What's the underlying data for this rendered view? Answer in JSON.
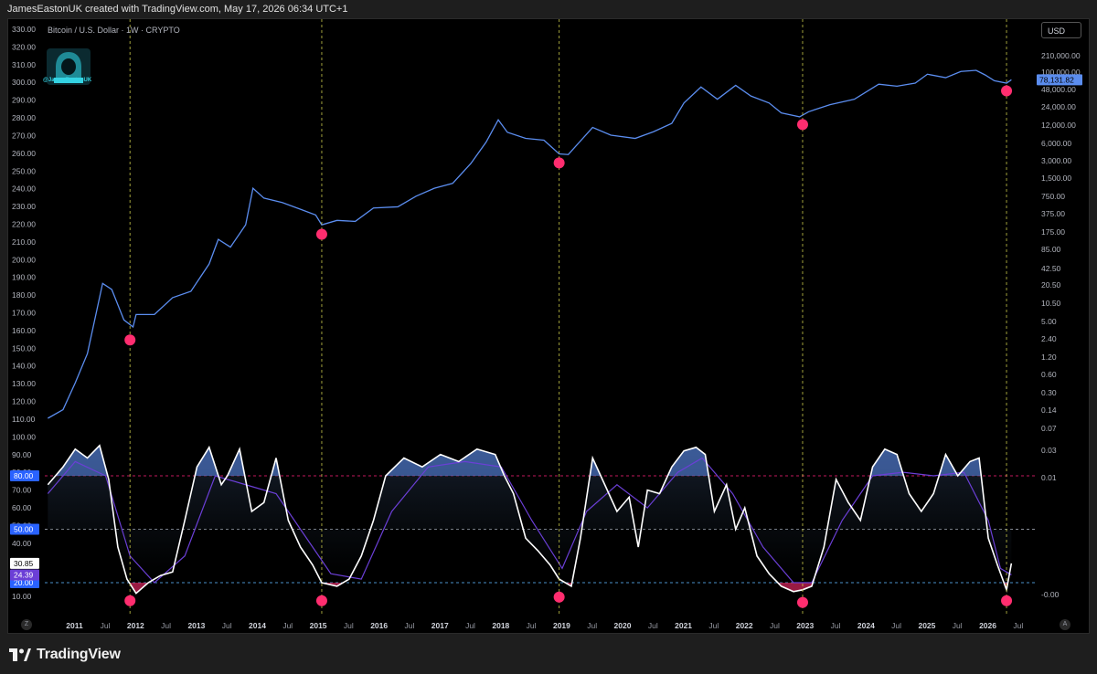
{
  "header": {
    "attribution": "JamesEastonUK created with TradingView.com, May 17, 2026 06:34 UTC+1"
  },
  "chart_header": {
    "symbol_line": "Bitcoin / U.S. Dollar · 1W · CRYPTO",
    "currency_button": "USD",
    "watermark_handle": "@JamesEastonUK"
  },
  "footer": {
    "brand": "TradingView",
    "z_button": "Z",
    "a_button": "A"
  },
  "colors": {
    "price_line": "#5b8def",
    "oscillator_line": "#ffffff",
    "signal_line": "#6b3fd6",
    "marker": "#ff2d6f",
    "overbought_line": "#c2185b",
    "vertical_guides": "#c8c84a",
    "upper_fill": "#5b8def",
    "lower_fill": "#ff2d6f"
  },
  "chart_data": [
    {
      "type": "line",
      "title": "Bitcoin / U.S. Dollar · 1W · CRYPTO",
      "scale": "log",
      "left_axis_ticks": [
        "330.00",
        "320.00",
        "310.00",
        "300.00",
        "290.00",
        "280.00",
        "270.00",
        "260.00",
        "250.00",
        "240.00",
        "230.00",
        "220.00",
        "210.00",
        "200.00",
        "190.00",
        "180.00",
        "170.00",
        "160.00",
        "150.00",
        "140.00",
        "130.00",
        "120.00",
        "110.00",
        "100.00",
        "90.00",
        "80.00",
        "70.00",
        "60.00",
        "50.00",
        "40.00",
        "30.00",
        "20.00",
        "10.00"
      ],
      "right_axis_ticks": [
        "210,000.00",
        "100,000.00",
        "48,000.00",
        "24,000.00",
        "12,000.00",
        "6,000.00",
        "3,000.00",
        "1,500.00",
        "750.00",
        "375.00",
        "175.00",
        "85.00",
        "42.50",
        "20.50",
        "10.50",
        "5.00",
        "2.40",
        "1.20",
        "0.60",
        "0.30",
        "0.14",
        "0.07",
        "0.03",
        "0.01",
        "-0.00"
      ],
      "x_ticks": [
        "2011",
        "Jul",
        "2012",
        "Jul",
        "2013",
        "Jul",
        "2014",
        "Jul",
        "2015",
        "Jul",
        "2016",
        "Jul",
        "2017",
        "Jul",
        "2018",
        "Jul",
        "2019",
        "Jul",
        "2020",
        "Jul",
        "2021",
        "Jul",
        "2022",
        "Jul",
        "2023",
        "Jul",
        "2024",
        "Jul",
        "2025",
        "Jul",
        "2026",
        "Jul"
      ],
      "last_price_label": "78,131.82",
      "series": [
        {
          "name": "Bitcoin / U.S. Dollar",
          "x": [
            2010.55,
            2010.8,
            2011.0,
            2011.2,
            2011.45,
            2011.6,
            2011.8,
            2011.95,
            2012.0,
            2012.3,
            2012.6,
            2012.9,
            2013.2,
            2013.35,
            2013.55,
            2013.8,
            2013.92,
            2014.1,
            2014.4,
            2014.7,
            2014.95,
            2015.05,
            2015.3,
            2015.6,
            2015.9,
            2016.3,
            2016.6,
            2016.9,
            2017.2,
            2017.5,
            2017.75,
            2017.95,
            2018.1,
            2018.4,
            2018.7,
            2018.95,
            2019.1,
            2019.5,
            2019.8,
            2020.2,
            2020.5,
            2020.8,
            2021.0,
            2021.28,
            2021.55,
            2021.85,
            2022.1,
            2022.4,
            2022.6,
            2022.9,
            2023.05,
            2023.4,
            2023.8,
            2024.2,
            2024.5,
            2024.8,
            2025.0,
            2025.3,
            2025.55,
            2025.8,
            2025.95,
            2026.1,
            2026.3,
            2026.38
          ],
          "values": [
            0.07,
            0.1,
            0.3,
            1.0,
            18,
            14,
            4,
            3,
            5,
            5,
            10,
            13,
            40,
            110,
            80,
            200,
            900,
            600,
            500,
            380,
            300,
            200,
            240,
            230,
            400,
            420,
            650,
            900,
            1100,
            2500,
            6000,
            15000,
            9000,
            7000,
            6500,
            3700,
            3600,
            11000,
            8000,
            7000,
            9200,
            13000,
            30000,
            58000,
            35000,
            62000,
            40000,
            30000,
            20000,
            17000,
            21000,
            28000,
            35000,
            65000,
            60000,
            68000,
            98000,
            85000,
            110000,
            115000,
            95000,
            75000,
            68000,
            78131.82
          ]
        }
      ],
      "lows_marked": [
        "2011 Nov",
        "2015 Jan",
        "2018 Dec",
        "2022 Nov",
        "2026 Apr"
      ]
    },
    {
      "type": "line",
      "scale": "linear",
      "ylim": [
        0,
        100
      ],
      "levels": [
        80,
        50,
        20
      ],
      "level_labels": [
        "80.00",
        "50.00",
        "20.00"
      ],
      "last_value_labels": [
        "30.85",
        "24.39"
      ],
      "series": [
        {
          "name": "oscillator",
          "x": [
            2010.55,
            2010.8,
            2011.0,
            2011.2,
            2011.4,
            2011.55,
            2011.7,
            2011.85,
            2012.0,
            2012.2,
            2012.4,
            2012.6,
            2012.8,
            2013.0,
            2013.2,
            2013.4,
            2013.5,
            2013.7,
            2013.9,
            2014.1,
            2014.3,
            2014.5,
            2014.7,
            2014.9,
            2015.05,
            2015.3,
            2015.5,
            2015.7,
            2015.9,
            2016.1,
            2016.4,
            2016.7,
            2017.0,
            2017.3,
            2017.6,
            2017.9,
            2018.05,
            2018.2,
            2018.4,
            2018.6,
            2018.8,
            2018.95,
            2019.15,
            2019.3,
            2019.5,
            2019.7,
            2019.9,
            2020.1,
            2020.25,
            2020.4,
            2020.6,
            2020.8,
            2021.0,
            2021.2,
            2021.35,
            2021.5,
            2021.7,
            2021.85,
            2022.0,
            2022.2,
            2022.4,
            2022.6,
            2022.8,
            2022.95,
            2023.1,
            2023.3,
            2023.5,
            2023.7,
            2023.9,
            2024.1,
            2024.3,
            2024.5,
            2024.7,
            2024.9,
            2025.1,
            2025.3,
            2025.5,
            2025.7,
            2025.85,
            2026.0,
            2026.15,
            2026.3,
            2026.38
          ],
          "values": [
            75,
            85,
            95,
            90,
            97,
            78,
            40,
            22,
            14,
            20,
            24,
            26,
            55,
            85,
            96,
            75,
            80,
            95,
            60,
            65,
            90,
            55,
            40,
            30,
            20,
            18,
            22,
            35,
            55,
            80,
            90,
            85,
            92,
            88,
            95,
            92,
            80,
            70,
            45,
            38,
            30,
            22,
            18,
            45,
            90,
            75,
            60,
            68,
            40,
            72,
            70,
            85,
            94,
            96,
            92,
            60,
            75,
            50,
            62,
            35,
            25,
            18,
            15,
            16,
            18,
            40,
            78,
            65,
            55,
            85,
            95,
            92,
            70,
            60,
            70,
            92,
            80,
            88,
            90,
            45,
            30,
            16,
            30.85
          ]
        },
        {
          "name": "signal",
          "x": [
            2010.55,
            2011.0,
            2011.5,
            2011.9,
            2012.3,
            2012.8,
            2013.3,
            2013.8,
            2014.3,
            2014.8,
            2015.2,
            2015.7,
            2016.2,
            2016.8,
            2017.4,
            2018.0,
            2018.5,
            2019.0,
            2019.4,
            2019.9,
            2020.4,
            2020.9,
            2021.3,
            2021.8,
            2022.3,
            2022.8,
            2023.1,
            2023.6,
            2024.1,
            2024.6,
            2025.1,
            2025.6,
            2026.0,
            2026.2,
            2026.38
          ],
          "values": [
            70,
            88,
            80,
            35,
            20,
            35,
            80,
            75,
            70,
            45,
            25,
            22,
            60,
            85,
            88,
            85,
            55,
            28,
            60,
            75,
            62,
            82,
            90,
            70,
            40,
            20,
            20,
            55,
            80,
            82,
            80,
            82,
            55,
            28,
            24.39
          ]
        }
      ]
    }
  ]
}
